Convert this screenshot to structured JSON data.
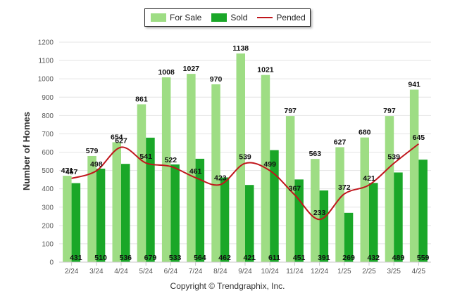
{
  "colors": {
    "for_sale": "#9edd84",
    "sold": "#1aa728",
    "pended": "#c0161c",
    "grid": "#e4e4e4",
    "axis_text": "#555555"
  },
  "copyright": "Copyright © Trendgraphix, Inc.",
  "chart_data": {
    "type": "bar",
    "ylabel": "Number of Homes",
    "xlabel": "",
    "ylim": [
      0,
      1200
    ],
    "yticks": [
      0,
      100,
      200,
      300,
      400,
      500,
      600,
      700,
      800,
      900,
      1000,
      1100,
      1200
    ],
    "grid": true,
    "legend": "top-center",
    "categories": [
      "2/24",
      "3/24",
      "4/24",
      "5/24",
      "6/24",
      "7/24",
      "8/24",
      "9/24",
      "10/24",
      "11/24",
      "12/24",
      "1/25",
      "2/25",
      "3/25",
      "4/25"
    ],
    "series": [
      {
        "name": "For Sale",
        "type": "bar",
        "values": [
          471,
          579,
          654,
          861,
          1008,
          1027,
          970,
          1138,
          1021,
          797,
          563,
          627,
          680,
          797,
          941
        ]
      },
      {
        "name": "Sold",
        "type": "bar",
        "values": [
          431,
          510,
          536,
          679,
          533,
          564,
          462,
          421,
          611,
          451,
          391,
          269,
          432,
          489,
          559
        ]
      },
      {
        "name": "Pended",
        "type": "line",
        "values": [
          457,
          498,
          627,
          541,
          522,
          461,
          423,
          539,
          499,
          367,
          233,
          372,
          421,
          539,
          645
        ]
      }
    ]
  }
}
